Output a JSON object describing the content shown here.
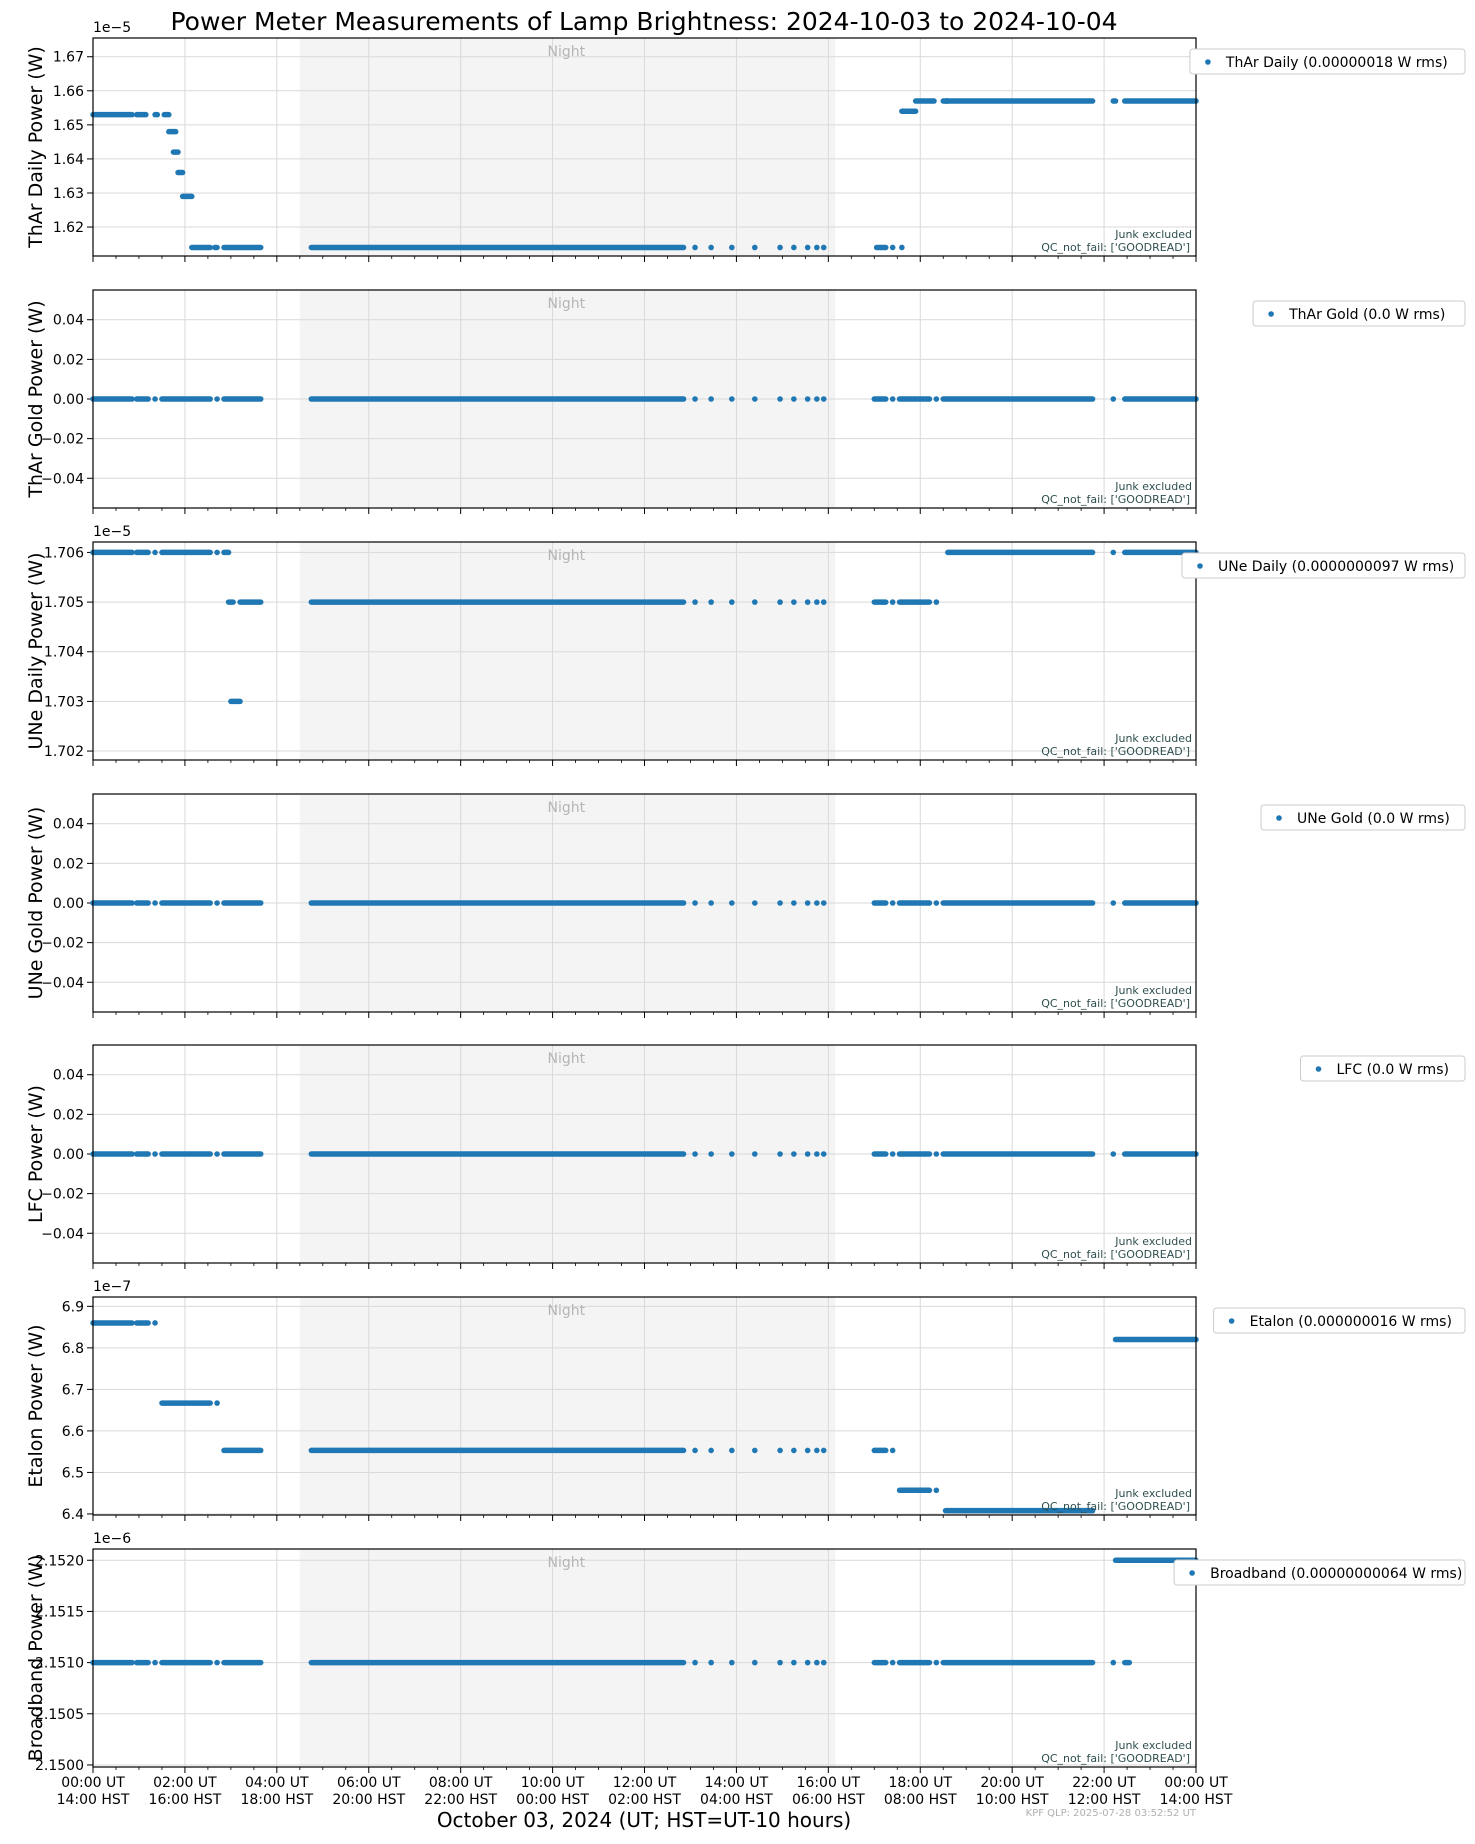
{
  "chart_data": {
    "type": "scatter",
    "title": "Power Meter Measurements of Lamp Brightness: 2024-10-03 to 2024-10-04",
    "xlabel": "October 03, 2024 (UT; HST=UT-10 hours)",
    "x_range_hours_ut": [
      0,
      24
    ],
    "x_ticks": [
      {
        "ut": "00:00 UT",
        "hst": "14:00 HST"
      },
      {
        "ut": "02:00 UT",
        "hst": "16:00 HST"
      },
      {
        "ut": "04:00 UT",
        "hst": "18:00 HST"
      },
      {
        "ut": "06:00 UT",
        "hst": "20:00 HST"
      },
      {
        "ut": "08:00 UT",
        "hst": "22:00 HST"
      },
      {
        "ut": "10:00 UT",
        "hst": "00:00 HST"
      },
      {
        "ut": "12:00 UT",
        "hst": "02:00 HST"
      },
      {
        "ut": "14:00 UT",
        "hst": "04:00 HST"
      },
      {
        "ut": "16:00 UT",
        "hst": "06:00 HST"
      },
      {
        "ut": "18:00 UT",
        "hst": "08:00 HST"
      },
      {
        "ut": "20:00 UT",
        "hst": "10:00 HST"
      },
      {
        "ut": "22:00 UT",
        "hst": "12:00 HST"
      },
      {
        "ut": "00:00 UT",
        "hst": "14:00 HST"
      }
    ],
    "night_label": "Night",
    "night_span_hours_ut": [
      4.5,
      16.15
    ],
    "junk_label": "Junk excluded",
    "qc_label": "QC_not_fail: ['GOODREAD']",
    "footer": "KPF QLP: 2025-07-28 03:52:52 UT",
    "grid": true,
    "marker_color": "#1f77b4",
    "panels": [
      {
        "ylabel": "ThAr Daily Power (W)",
        "legend": "ThAr Daily (0.00000018 W rms)",
        "multiplier": "1e−5",
        "ylim": [
          1.6115,
          1.6755
        ],
        "yticks": [
          1.62,
          1.63,
          1.64,
          1.65,
          1.66,
          1.67
        ],
        "ytick_labels": [
          "1.62",
          "1.63",
          "1.64",
          "1.65",
          "1.66",
          "1.67"
        ],
        "segments": [
          {
            "x0": 0.0,
            "x1": 0.85,
            "y": 1.653
          },
          {
            "x0": 0.95,
            "x1": 1.15,
            "y": 1.653
          },
          {
            "x0": 1.35,
            "x1": 1.4,
            "y": 1.653
          },
          {
            "x0": 1.55,
            "x1": 1.65,
            "y": 1.653
          },
          {
            "x0": 1.65,
            "x1": 1.8,
            "y": 1.648
          },
          {
            "x0": 1.75,
            "x1": 1.85,
            "y": 1.642
          },
          {
            "x0": 1.85,
            "x1": 1.95,
            "y": 1.636
          },
          {
            "x0": 1.95,
            "x1": 2.15,
            "y": 1.629
          },
          {
            "x0": 2.15,
            "x1": 2.55,
            "y": 1.614
          },
          {
            "x0": 2.65,
            "x1": 2.7,
            "y": 1.614
          },
          {
            "x0": 2.85,
            "x1": 3.65,
            "y": 1.614
          },
          {
            "x0": 4.75,
            "x1": 12.85,
            "y": 1.614
          },
          {
            "x0": 17.05,
            "x1": 17.25,
            "y": 1.614
          },
          {
            "x0": 17.6,
            "x1": 17.9,
            "y": 1.654
          },
          {
            "x0": 17.9,
            "x1": 18.3,
            "y": 1.657
          },
          {
            "x0": 18.5,
            "x1": 18.6,
            "y": 1.657
          },
          {
            "x0": 18.55,
            "x1": 21.75,
            "y": 1.657
          },
          {
            "x0": 22.2,
            "x1": 22.25,
            "y": 1.657
          },
          {
            "x0": 22.45,
            "x1": 24.0,
            "y": 1.657
          }
        ],
        "points": [
          {
            "x": 13.1,
            "y": 1.614
          },
          {
            "x": 13.45,
            "y": 1.614
          },
          {
            "x": 13.9,
            "y": 1.614
          },
          {
            "x": 14.4,
            "y": 1.614
          },
          {
            "x": 14.95,
            "y": 1.614
          },
          {
            "x": 15.25,
            "y": 1.614
          },
          {
            "x": 15.55,
            "y": 1.614
          },
          {
            "x": 15.75,
            "y": 1.614
          },
          {
            "x": 15.9,
            "y": 1.614
          },
          {
            "x": 17.4,
            "y": 1.614
          },
          {
            "x": 17.6,
            "y": 1.614
          }
        ]
      },
      {
        "ylabel": "ThAr Gold Power (W)",
        "legend": "ThAr Gold (0.0 W rms)",
        "multiplier": "",
        "ylim": [
          -0.055,
          0.055
        ],
        "yticks": [
          -0.04,
          -0.02,
          0.0,
          0.02,
          0.04
        ],
        "ytick_labels": [
          "−0.04",
          "−0.02",
          "0.00",
          "0.02",
          "0.04"
        ],
        "segments": [
          {
            "x0": 0.0,
            "x1": 0.85,
            "y": 0.0
          },
          {
            "x0": 0.95,
            "x1": 1.2,
            "y": 0.0
          },
          {
            "x0": 1.5,
            "x1": 2.55,
            "y": 0.0
          },
          {
            "x0": 2.85,
            "x1": 3.65,
            "y": 0.0
          },
          {
            "x0": 4.75,
            "x1": 12.85,
            "y": 0.0
          },
          {
            "x0": 17.0,
            "x1": 17.25,
            "y": 0.0
          },
          {
            "x0": 17.55,
            "x1": 18.2,
            "y": 0.0
          },
          {
            "x0": 18.5,
            "x1": 21.75,
            "y": 0.0
          },
          {
            "x0": 22.45,
            "x1": 24.0,
            "y": 0.0
          }
        ],
        "points": [
          {
            "x": 1.35,
            "y": 0.0
          },
          {
            "x": 2.7,
            "y": 0.0
          },
          {
            "x": 13.1,
            "y": 0.0
          },
          {
            "x": 13.45,
            "y": 0.0
          },
          {
            "x": 13.9,
            "y": 0.0
          },
          {
            "x": 14.4,
            "y": 0.0
          },
          {
            "x": 14.95,
            "y": 0.0
          },
          {
            "x": 15.25,
            "y": 0.0
          },
          {
            "x": 15.55,
            "y": 0.0
          },
          {
            "x": 15.75,
            "y": 0.0
          },
          {
            "x": 15.9,
            "y": 0.0
          },
          {
            "x": 17.4,
            "y": 0.0
          },
          {
            "x": 18.35,
            "y": 0.0
          },
          {
            "x": 22.2,
            "y": 0.0
          }
        ]
      },
      {
        "ylabel": "UNe Daily Power (W)",
        "legend": "UNe Daily (0.0000000097 W rms)",
        "multiplier": "1e−5",
        "ylim": [
          1.70182,
          1.70621
        ],
        "yticks": [
          1.702,
          1.703,
          1.704,
          1.705,
          1.706
        ],
        "ytick_labels": [
          "1.702",
          "1.703",
          "1.704",
          "1.705",
          "1.706"
        ],
        "segments": [
          {
            "x0": 0.0,
            "x1": 0.85,
            "y": 1.706
          },
          {
            "x0": 0.95,
            "x1": 1.2,
            "y": 1.706
          },
          {
            "x0": 1.5,
            "x1": 2.55,
            "y": 1.706
          },
          {
            "x0": 2.85,
            "x1": 2.95,
            "y": 1.706
          },
          {
            "x0": 2.95,
            "x1": 3.05,
            "y": 1.705
          },
          {
            "x0": 3.0,
            "x1": 3.2,
            "y": 1.703
          },
          {
            "x0": 3.2,
            "x1": 3.65,
            "y": 1.705
          },
          {
            "x0": 4.75,
            "x1": 12.85,
            "y": 1.705
          },
          {
            "x0": 17.0,
            "x1": 17.25,
            "y": 1.705
          },
          {
            "x0": 17.55,
            "x1": 18.2,
            "y": 1.705
          },
          {
            "x0": 18.6,
            "x1": 21.75,
            "y": 1.706
          },
          {
            "x0": 22.45,
            "x1": 24.0,
            "y": 1.706
          }
        ],
        "points": [
          {
            "x": 1.35,
            "y": 1.706
          },
          {
            "x": 2.7,
            "y": 1.706
          },
          {
            "x": 13.1,
            "y": 1.705
          },
          {
            "x": 13.45,
            "y": 1.705
          },
          {
            "x": 13.9,
            "y": 1.705
          },
          {
            "x": 14.4,
            "y": 1.705
          },
          {
            "x": 14.95,
            "y": 1.705
          },
          {
            "x": 15.25,
            "y": 1.705
          },
          {
            "x": 15.55,
            "y": 1.705
          },
          {
            "x": 15.75,
            "y": 1.705
          },
          {
            "x": 15.9,
            "y": 1.705
          },
          {
            "x": 17.4,
            "y": 1.705
          },
          {
            "x": 18.35,
            "y": 1.705
          },
          {
            "x": 22.2,
            "y": 1.706
          }
        ]
      },
      {
        "ylabel": "UNe Gold Power (W)",
        "legend": "UNe Gold (0.0 W rms)",
        "multiplier": "",
        "ylim": [
          -0.055,
          0.055
        ],
        "yticks": [
          -0.04,
          -0.02,
          0.0,
          0.02,
          0.04
        ],
        "ytick_labels": [
          "−0.04",
          "−0.02",
          "0.00",
          "0.02",
          "0.04"
        ],
        "segments": [
          {
            "x0": 0.0,
            "x1": 0.85,
            "y": 0.0
          },
          {
            "x0": 0.95,
            "x1": 1.2,
            "y": 0.0
          },
          {
            "x0": 1.5,
            "x1": 2.55,
            "y": 0.0
          },
          {
            "x0": 2.85,
            "x1": 3.65,
            "y": 0.0
          },
          {
            "x0": 4.75,
            "x1": 12.85,
            "y": 0.0
          },
          {
            "x0": 17.0,
            "x1": 17.25,
            "y": 0.0
          },
          {
            "x0": 17.55,
            "x1": 18.2,
            "y": 0.0
          },
          {
            "x0": 18.5,
            "x1": 21.75,
            "y": 0.0
          },
          {
            "x0": 22.45,
            "x1": 24.0,
            "y": 0.0
          }
        ],
        "points": [
          {
            "x": 1.35,
            "y": 0.0
          },
          {
            "x": 2.7,
            "y": 0.0
          },
          {
            "x": 13.1,
            "y": 0.0
          },
          {
            "x": 13.45,
            "y": 0.0
          },
          {
            "x": 13.9,
            "y": 0.0
          },
          {
            "x": 14.4,
            "y": 0.0
          },
          {
            "x": 14.95,
            "y": 0.0
          },
          {
            "x": 15.25,
            "y": 0.0
          },
          {
            "x": 15.55,
            "y": 0.0
          },
          {
            "x": 15.75,
            "y": 0.0
          },
          {
            "x": 15.9,
            "y": 0.0
          },
          {
            "x": 17.4,
            "y": 0.0
          },
          {
            "x": 18.35,
            "y": 0.0
          },
          {
            "x": 22.2,
            "y": 0.0
          }
        ]
      },
      {
        "ylabel": "LFC Power (W)",
        "legend": "LFC (0.0 W rms)",
        "multiplier": "",
        "ylim": [
          -0.055,
          0.055
        ],
        "yticks": [
          -0.04,
          -0.02,
          0.0,
          0.02,
          0.04
        ],
        "ytick_labels": [
          "−0.04",
          "−0.02",
          "0.00",
          "0.02",
          "0.04"
        ],
        "segments": [
          {
            "x0": 0.0,
            "x1": 0.85,
            "y": 0.0
          },
          {
            "x0": 0.95,
            "x1": 1.2,
            "y": 0.0
          },
          {
            "x0": 1.5,
            "x1": 2.55,
            "y": 0.0
          },
          {
            "x0": 2.85,
            "x1": 3.65,
            "y": 0.0
          },
          {
            "x0": 4.75,
            "x1": 12.85,
            "y": 0.0
          },
          {
            "x0": 17.0,
            "x1": 17.25,
            "y": 0.0
          },
          {
            "x0": 17.55,
            "x1": 18.2,
            "y": 0.0
          },
          {
            "x0": 18.5,
            "x1": 21.75,
            "y": 0.0
          },
          {
            "x0": 22.45,
            "x1": 24.0,
            "y": 0.0
          }
        ],
        "points": [
          {
            "x": 1.35,
            "y": 0.0
          },
          {
            "x": 2.7,
            "y": 0.0
          },
          {
            "x": 13.1,
            "y": 0.0
          },
          {
            "x": 13.45,
            "y": 0.0
          },
          {
            "x": 13.9,
            "y": 0.0
          },
          {
            "x": 14.4,
            "y": 0.0
          },
          {
            "x": 14.95,
            "y": 0.0
          },
          {
            "x": 15.25,
            "y": 0.0
          },
          {
            "x": 15.55,
            "y": 0.0
          },
          {
            "x": 15.75,
            "y": 0.0
          },
          {
            "x": 15.9,
            "y": 0.0
          },
          {
            "x": 17.4,
            "y": 0.0
          },
          {
            "x": 18.35,
            "y": 0.0
          },
          {
            "x": 22.2,
            "y": 0.0
          }
        ]
      },
      {
        "ylabel": "Etalon Power (W)",
        "legend": "Etalon (0.000000016 W rms)",
        "multiplier": "1e−7",
        "ylim": [
          6.3975,
          6.9225
        ],
        "yticks": [
          6.4,
          6.5,
          6.6,
          6.7,
          6.8,
          6.9
        ],
        "ytick_labels": [
          "6.4",
          "6.5",
          "6.6",
          "6.7",
          "6.8",
          "6.9"
        ],
        "segments": [
          {
            "x0": 0.0,
            "x1": 0.85,
            "y": 6.86
          },
          {
            "x0": 0.95,
            "x1": 1.2,
            "y": 6.86
          },
          {
            "x0": 1.5,
            "x1": 2.55,
            "y": 6.667
          },
          {
            "x0": 2.85,
            "x1": 3.65,
            "y": 6.553
          },
          {
            "x0": 4.75,
            "x1": 12.85,
            "y": 6.553
          },
          {
            "x0": 17.0,
            "x1": 17.25,
            "y": 6.553
          },
          {
            "x0": 17.55,
            "x1": 18.2,
            "y": 6.457
          },
          {
            "x0": 18.55,
            "x1": 21.75,
            "y": 6.408
          },
          {
            "x0": 22.25,
            "x1": 24.0,
            "y": 6.82
          }
        ],
        "points": [
          {
            "x": 1.35,
            "y": 6.86
          },
          {
            "x": 2.7,
            "y": 6.667
          },
          {
            "x": 13.1,
            "y": 6.553
          },
          {
            "x": 13.45,
            "y": 6.553
          },
          {
            "x": 13.9,
            "y": 6.553
          },
          {
            "x": 14.4,
            "y": 6.553
          },
          {
            "x": 14.95,
            "y": 6.553
          },
          {
            "x": 15.25,
            "y": 6.553
          },
          {
            "x": 15.55,
            "y": 6.553
          },
          {
            "x": 15.75,
            "y": 6.553
          },
          {
            "x": 15.9,
            "y": 6.553
          },
          {
            "x": 17.4,
            "y": 6.553
          },
          {
            "x": 18.35,
            "y": 6.457
          }
        ]
      },
      {
        "ylabel": "Broadband Power (W)",
        "legend": "Broadband (0.00000000064 W rms)",
        "multiplier": "1e−6",
        "ylim": [
          2.14998,
          2.15211
        ],
        "yticks": [
          2.15,
          2.1505,
          2.151,
          2.1515,
          2.152
        ],
        "ytick_labels": [
          "2.1500",
          "2.1505",
          "2.1510",
          "2.1515",
          "2.1520"
        ],
        "segments": [
          {
            "x0": 0.0,
            "x1": 0.85,
            "y": 2.151
          },
          {
            "x0": 0.95,
            "x1": 1.2,
            "y": 2.151
          },
          {
            "x0": 1.5,
            "x1": 2.55,
            "y": 2.151
          },
          {
            "x0": 2.85,
            "x1": 3.65,
            "y": 2.151
          },
          {
            "x0": 4.75,
            "x1": 12.85,
            "y": 2.151
          },
          {
            "x0": 17.0,
            "x1": 17.25,
            "y": 2.151
          },
          {
            "x0": 17.55,
            "x1": 18.2,
            "y": 2.151
          },
          {
            "x0": 18.5,
            "x1": 21.75,
            "y": 2.151
          },
          {
            "x0": 22.45,
            "x1": 22.55,
            "y": 2.151
          },
          {
            "x0": 22.25,
            "x1": 24.0,
            "y": 2.152
          }
        ],
        "points": [
          {
            "x": 1.35,
            "y": 2.151
          },
          {
            "x": 2.7,
            "y": 2.151
          },
          {
            "x": 13.1,
            "y": 2.151
          },
          {
            "x": 13.45,
            "y": 2.151
          },
          {
            "x": 13.9,
            "y": 2.151
          },
          {
            "x": 14.4,
            "y": 2.151
          },
          {
            "x": 14.95,
            "y": 2.151
          },
          {
            "x": 15.25,
            "y": 2.151
          },
          {
            "x": 15.55,
            "y": 2.151
          },
          {
            "x": 15.75,
            "y": 2.151
          },
          {
            "x": 15.9,
            "y": 2.151
          },
          {
            "x": 17.4,
            "y": 2.151
          },
          {
            "x": 18.35,
            "y": 2.151
          },
          {
            "x": 22.2,
            "y": 2.151
          }
        ]
      }
    ]
  }
}
